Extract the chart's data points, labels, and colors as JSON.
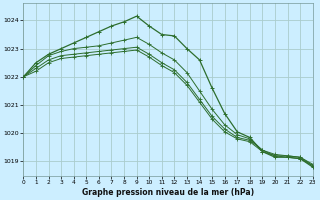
{
  "title": "Graphe pression niveau de la mer (hPa)",
  "background_color": "#cceeff",
  "grid_color": "#aacccc",
  "line_color": "#2d6e2d",
  "xlim": [
    0,
    23
  ],
  "ylim": [
    1018.5,
    1024.6
  ],
  "yticks": [
    1019,
    1020,
    1021,
    1022,
    1023,
    1024
  ],
  "xticks": [
    0,
    1,
    2,
    3,
    4,
    5,
    6,
    7,
    8,
    9,
    10,
    11,
    12,
    13,
    14,
    15,
    16,
    17,
    18,
    19,
    20,
    21,
    22,
    23
  ],
  "series": [
    [
      1022.0,
      1022.5,
      1022.8,
      1023.0,
      1023.2,
      1023.4,
      1023.6,
      1023.8,
      1023.95,
      1024.15,
      1023.8,
      1023.5,
      1023.45,
      1023.0,
      1022.6,
      1021.6,
      1020.7,
      1020.05,
      1019.85,
      1019.35,
      1019.15,
      1019.15,
      1019.1,
      1018.8
    ],
    [
      1022.0,
      1022.4,
      1022.75,
      1022.9,
      1023.0,
      1023.05,
      1023.1,
      1023.2,
      1023.3,
      1023.4,
      1023.15,
      1022.85,
      1022.6,
      1022.15,
      1021.5,
      1020.85,
      1020.3,
      1019.95,
      1019.8,
      1019.4,
      1019.2,
      1019.2,
      1019.15,
      1018.85
    ],
    [
      1022.0,
      1022.3,
      1022.6,
      1022.75,
      1022.8,
      1022.85,
      1022.9,
      1022.95,
      1023.0,
      1023.05,
      1022.8,
      1022.5,
      1022.25,
      1021.8,
      1021.2,
      1020.6,
      1020.15,
      1019.85,
      1019.75,
      1019.4,
      1019.25,
      1019.2,
      1019.15,
      1018.9
    ],
    [
      1022.0,
      1022.2,
      1022.5,
      1022.65,
      1022.7,
      1022.75,
      1022.8,
      1022.85,
      1022.9,
      1022.95,
      1022.7,
      1022.4,
      1022.15,
      1021.7,
      1021.1,
      1020.5,
      1020.05,
      1019.8,
      1019.7,
      1019.35,
      1019.2,
      1019.15,
      1019.1,
      1018.85
    ]
  ]
}
